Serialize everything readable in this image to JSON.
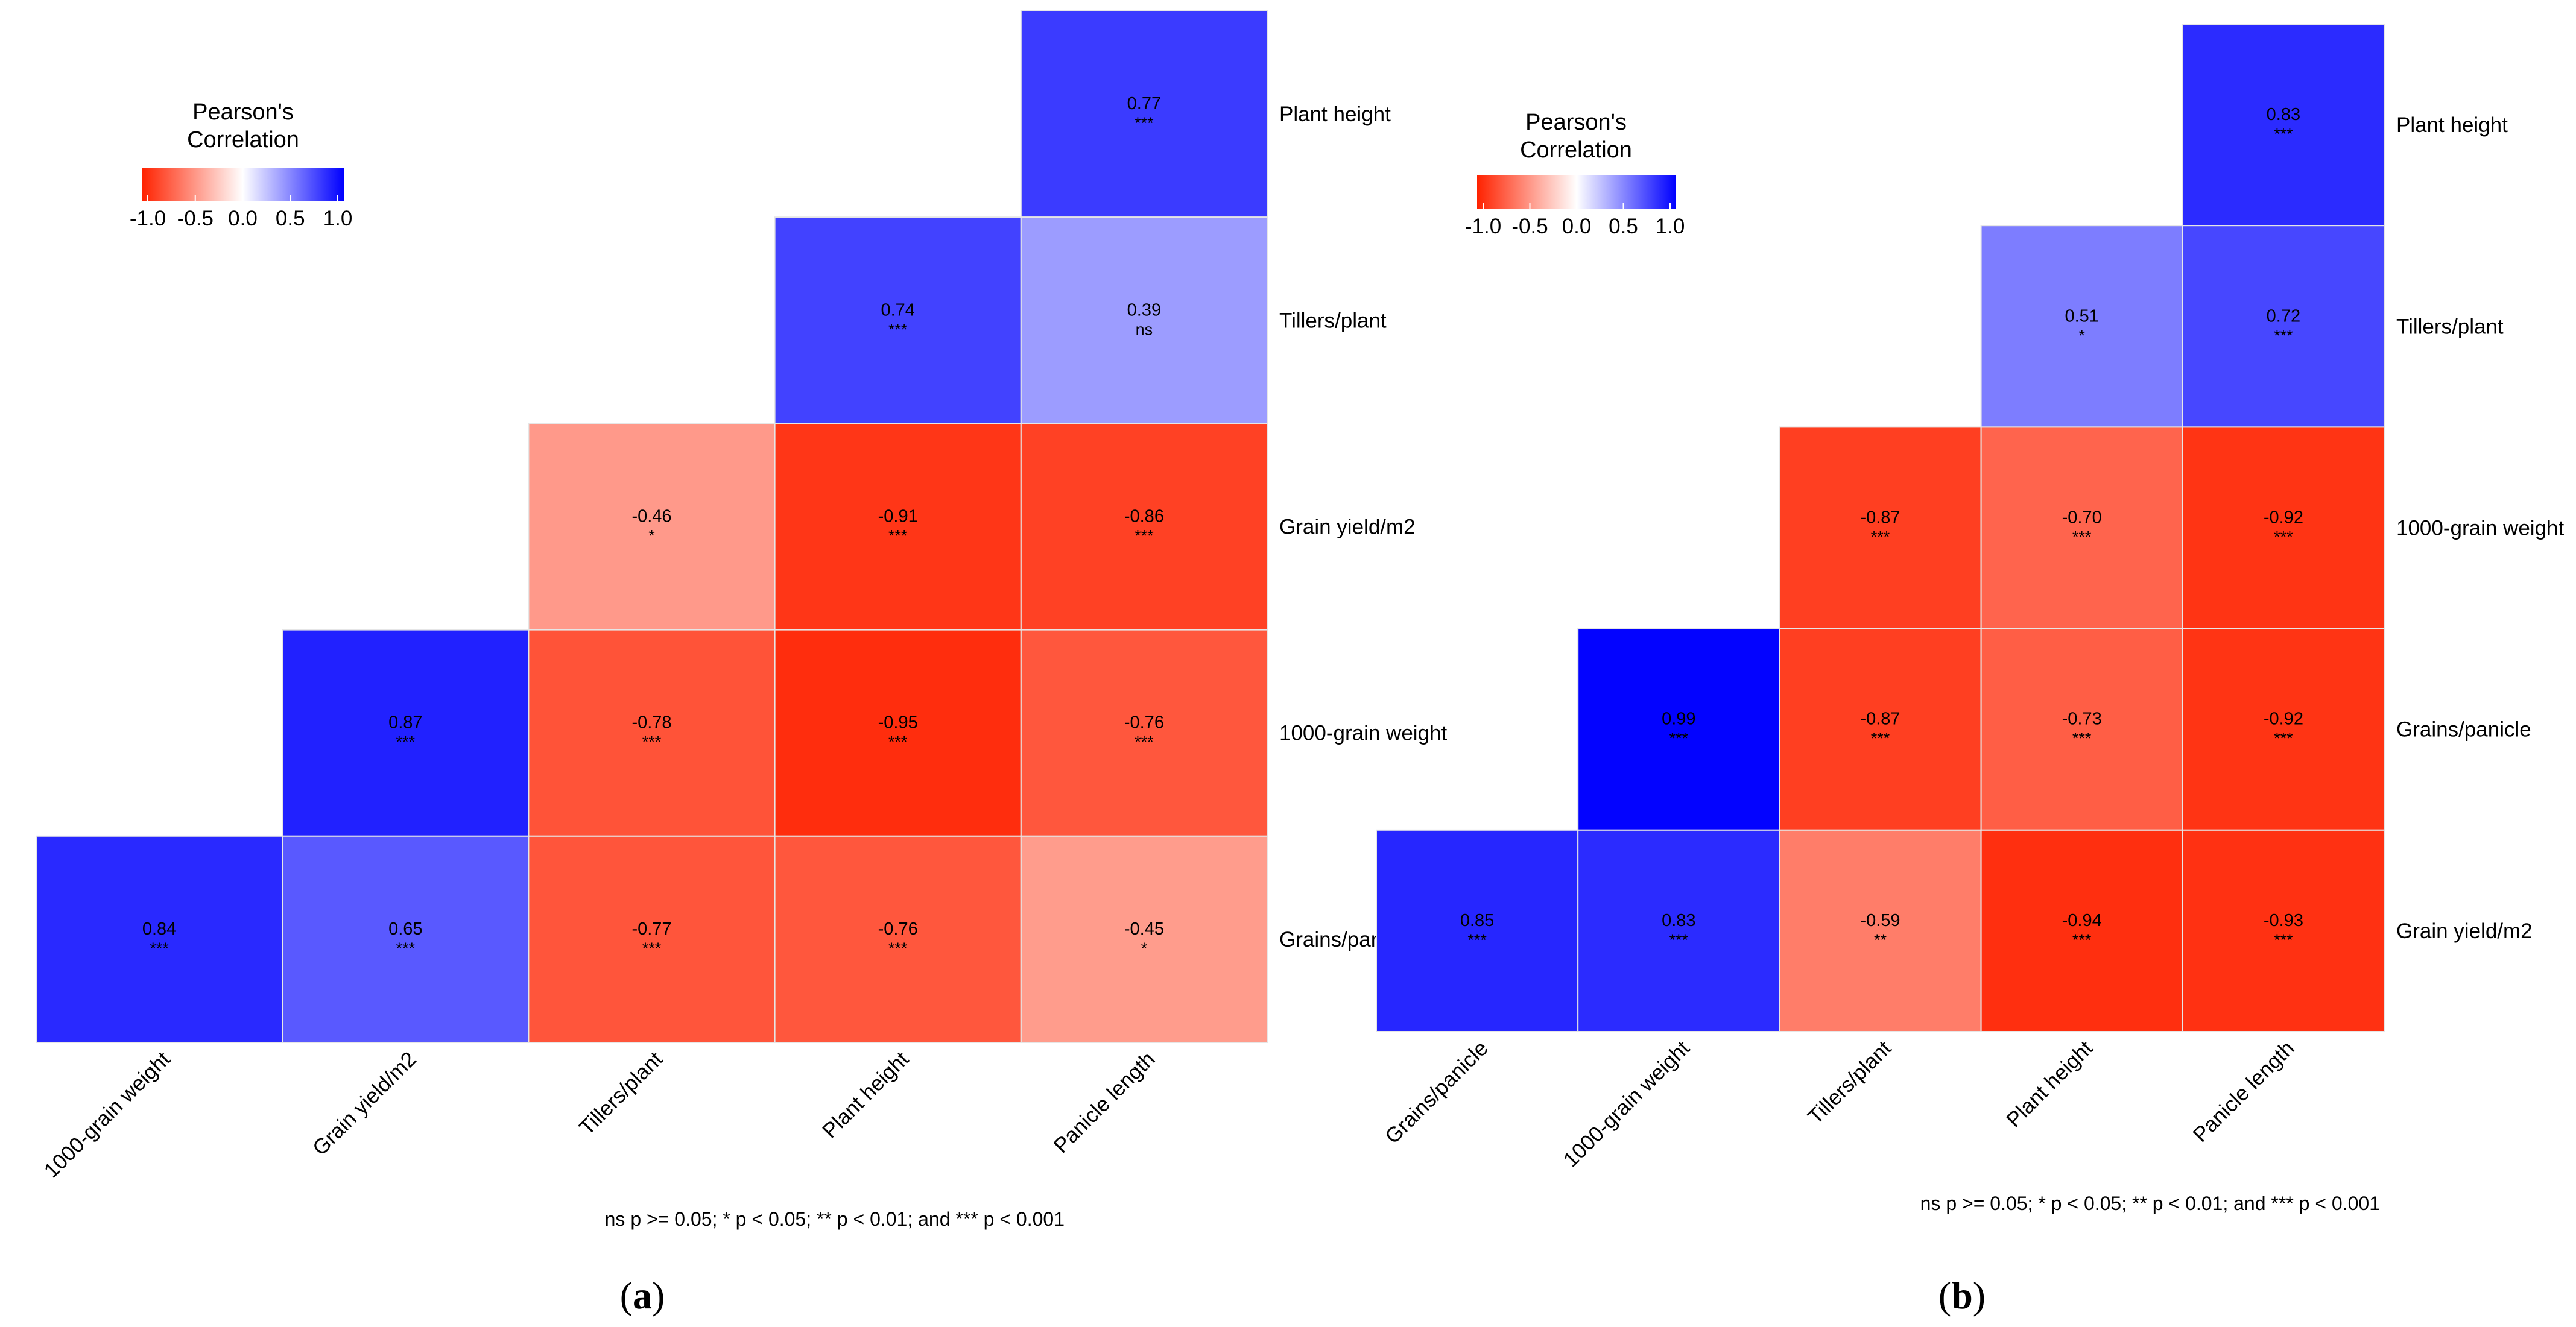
{
  "figure": {
    "note": "ns p >= 0.05; * p < 0.05; ** p < 0.01; and *** p < 0.001",
    "legend": {
      "title_line1": "Pearson's",
      "title_line2": "Correlation",
      "ticks": [
        "-1.0",
        "-0.5",
        "0.0",
        "0.5",
        "1.0"
      ],
      "tick_values": [
        -1.0,
        -0.5,
        0.0,
        0.5,
        1.0
      ]
    },
    "colors": {
      "neg": "#ff2200",
      "mid": "#ffffff",
      "pos": "#0000ff",
      "grid": "#e6e6e6",
      "text": "#000000"
    }
  },
  "chart_data": [
    {
      "type": "heatmap",
      "caption_letter": "a",
      "x_labels": [
        "1000-grain weight",
        "Grain yield/m2",
        "Tillers/plant",
        "Plant height",
        "Panicle length"
      ],
      "y_labels": [
        "Plant height",
        "Tillers/plant",
        "Grain yield/m2",
        "1000-grain weight",
        "Grains/panicle"
      ],
      "values": [
        [
          null,
          null,
          null,
          null,
          0.77
        ],
        [
          null,
          null,
          null,
          0.74,
          0.39
        ],
        [
          null,
          null,
          -0.46,
          -0.91,
          -0.86
        ],
        [
          null,
          0.87,
          -0.78,
          -0.95,
          -0.76
        ],
        [
          0.84,
          0.65,
          -0.77,
          -0.76,
          -0.45
        ]
      ],
      "significance": [
        [
          null,
          null,
          null,
          null,
          "***"
        ],
        [
          null,
          null,
          null,
          "***",
          "ns"
        ],
        [
          null,
          null,
          "*",
          "***",
          "***"
        ],
        [
          null,
          "***",
          "***",
          "***",
          "***"
        ],
        [
          "***",
          "***",
          "***",
          "***",
          "*"
        ]
      ],
      "color_range": [
        -1,
        1
      ]
    },
    {
      "type": "heatmap",
      "caption_letter": "b",
      "x_labels": [
        "Grains/panicle",
        "1000-grain weight",
        "Tillers/plant",
        "Plant height",
        "Panicle length"
      ],
      "y_labels": [
        "Plant height",
        "Tillers/plant",
        "1000-grain weight",
        "Grains/panicle",
        "Grain yield/m2"
      ],
      "values": [
        [
          null,
          null,
          null,
          null,
          0.83
        ],
        [
          null,
          null,
          null,
          0.51,
          0.72
        ],
        [
          null,
          null,
          -0.87,
          -0.7,
          -0.92
        ],
        [
          null,
          0.99,
          -0.87,
          -0.73,
          -0.92
        ],
        [
          0.85,
          0.83,
          -0.59,
          -0.94,
          -0.93
        ]
      ],
      "significance": [
        [
          null,
          null,
          null,
          null,
          "***"
        ],
        [
          null,
          null,
          null,
          "*",
          "***"
        ],
        [
          null,
          null,
          "***",
          "***",
          "***"
        ],
        [
          null,
          "***",
          "***",
          "***",
          "***"
        ],
        [
          "***",
          "***",
          "**",
          "***",
          "***"
        ]
      ],
      "color_range": [
        -1,
        1
      ]
    }
  ]
}
